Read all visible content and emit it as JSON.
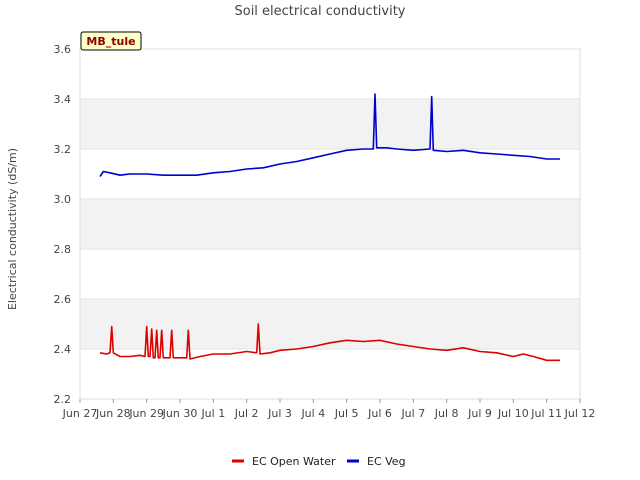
{
  "chart_data": {
    "type": "line",
    "title": "Soil electrical conductivity",
    "ylabel": "Electrical conductivity (dS/m)",
    "xlabel": "",
    "ylim": [
      2.2,
      3.6
    ],
    "y_ticks": [
      "2.2",
      "2.4",
      "2.6",
      "2.8",
      "3.0",
      "3.2",
      "3.4",
      "3.6"
    ],
    "x_ticks": [
      "Jun 27",
      "Jun 28",
      "Jun 29",
      "Jun 30",
      "Jul 1",
      "Jul 2",
      "Jul 3",
      "Jul 4",
      "Jul 5",
      "Jul 6",
      "Jul 7",
      "Jul 8",
      "Jul 9",
      "Jul 10",
      "Jul 11",
      "Jul 12"
    ],
    "x_range_days": [
      0,
      15
    ],
    "site_label": "MB_tule",
    "grid": true,
    "legend_position": "bottom-center",
    "series": [
      {
        "name": "EC Open Water",
        "color": "#dd0000",
        "points": [
          [
            0.6,
            2.385
          ],
          [
            0.8,
            2.38
          ],
          [
            0.9,
            2.385
          ],
          [
            0.95,
            2.49
          ],
          [
            1.0,
            2.385
          ],
          [
            1.2,
            2.37
          ],
          [
            1.5,
            2.37
          ],
          [
            1.8,
            2.375
          ],
          [
            1.95,
            2.37
          ],
          [
            2.0,
            2.49
          ],
          [
            2.05,
            2.37
          ],
          [
            2.1,
            2.37
          ],
          [
            2.15,
            2.48
          ],
          [
            2.2,
            2.365
          ],
          [
            2.25,
            2.365
          ],
          [
            2.3,
            2.475
          ],
          [
            2.35,
            2.365
          ],
          [
            2.4,
            2.365
          ],
          [
            2.45,
            2.475
          ],
          [
            2.5,
            2.365
          ],
          [
            2.7,
            2.365
          ],
          [
            2.75,
            2.475
          ],
          [
            2.8,
            2.365
          ],
          [
            3.0,
            2.365
          ],
          [
            3.2,
            2.365
          ],
          [
            3.25,
            2.475
          ],
          [
            3.3,
            2.36
          ],
          [
            3.6,
            2.37
          ],
          [
            4.0,
            2.38
          ],
          [
            4.5,
            2.38
          ],
          [
            5.0,
            2.39
          ],
          [
            5.3,
            2.385
          ],
          [
            5.35,
            2.5
          ],
          [
            5.4,
            2.38
          ],
          [
            5.7,
            2.385
          ],
          [
            6.0,
            2.395
          ],
          [
            6.5,
            2.4
          ],
          [
            7.0,
            2.41
          ],
          [
            7.5,
            2.425
          ],
          [
            8.0,
            2.435
          ],
          [
            8.5,
            2.43
          ],
          [
            9.0,
            2.435
          ],
          [
            9.5,
            2.42
          ],
          [
            10.0,
            2.41
          ],
          [
            10.5,
            2.4
          ],
          [
            11.0,
            2.395
          ],
          [
            11.5,
            2.405
          ],
          [
            12.0,
            2.39
          ],
          [
            12.5,
            2.385
          ],
          [
            13.0,
            2.37
          ],
          [
            13.3,
            2.38
          ],
          [
            13.6,
            2.37
          ],
          [
            14.0,
            2.355
          ],
          [
            14.4,
            2.355
          ]
        ]
      },
      {
        "name": "EC Veg",
        "color": "#0000cc",
        "points": [
          [
            0.6,
            3.09
          ],
          [
            0.7,
            3.11
          ],
          [
            0.9,
            3.105
          ],
          [
            1.2,
            3.095
          ],
          [
            1.5,
            3.1
          ],
          [
            2.0,
            3.1
          ],
          [
            2.5,
            3.095
          ],
          [
            3.0,
            3.095
          ],
          [
            3.5,
            3.095
          ],
          [
            4.0,
            3.105
          ],
          [
            4.5,
            3.11
          ],
          [
            5.0,
            3.12
          ],
          [
            5.5,
            3.125
          ],
          [
            6.0,
            3.14
          ],
          [
            6.5,
            3.15
          ],
          [
            7.0,
            3.165
          ],
          [
            7.5,
            3.18
          ],
          [
            8.0,
            3.195
          ],
          [
            8.5,
            3.2
          ],
          [
            8.8,
            3.2
          ],
          [
            8.85,
            3.42
          ],
          [
            8.9,
            3.205
          ],
          [
            9.2,
            3.205
          ],
          [
            9.5,
            3.2
          ],
          [
            10.0,
            3.195
          ],
          [
            10.5,
            3.2
          ],
          [
            10.55,
            3.41
          ],
          [
            10.6,
            3.195
          ],
          [
            11.0,
            3.19
          ],
          [
            11.5,
            3.195
          ],
          [
            12.0,
            3.185
          ],
          [
            12.5,
            3.18
          ],
          [
            13.0,
            3.175
          ],
          [
            13.5,
            3.17
          ],
          [
            14.0,
            3.16
          ],
          [
            14.4,
            3.16
          ]
        ]
      }
    ]
  }
}
